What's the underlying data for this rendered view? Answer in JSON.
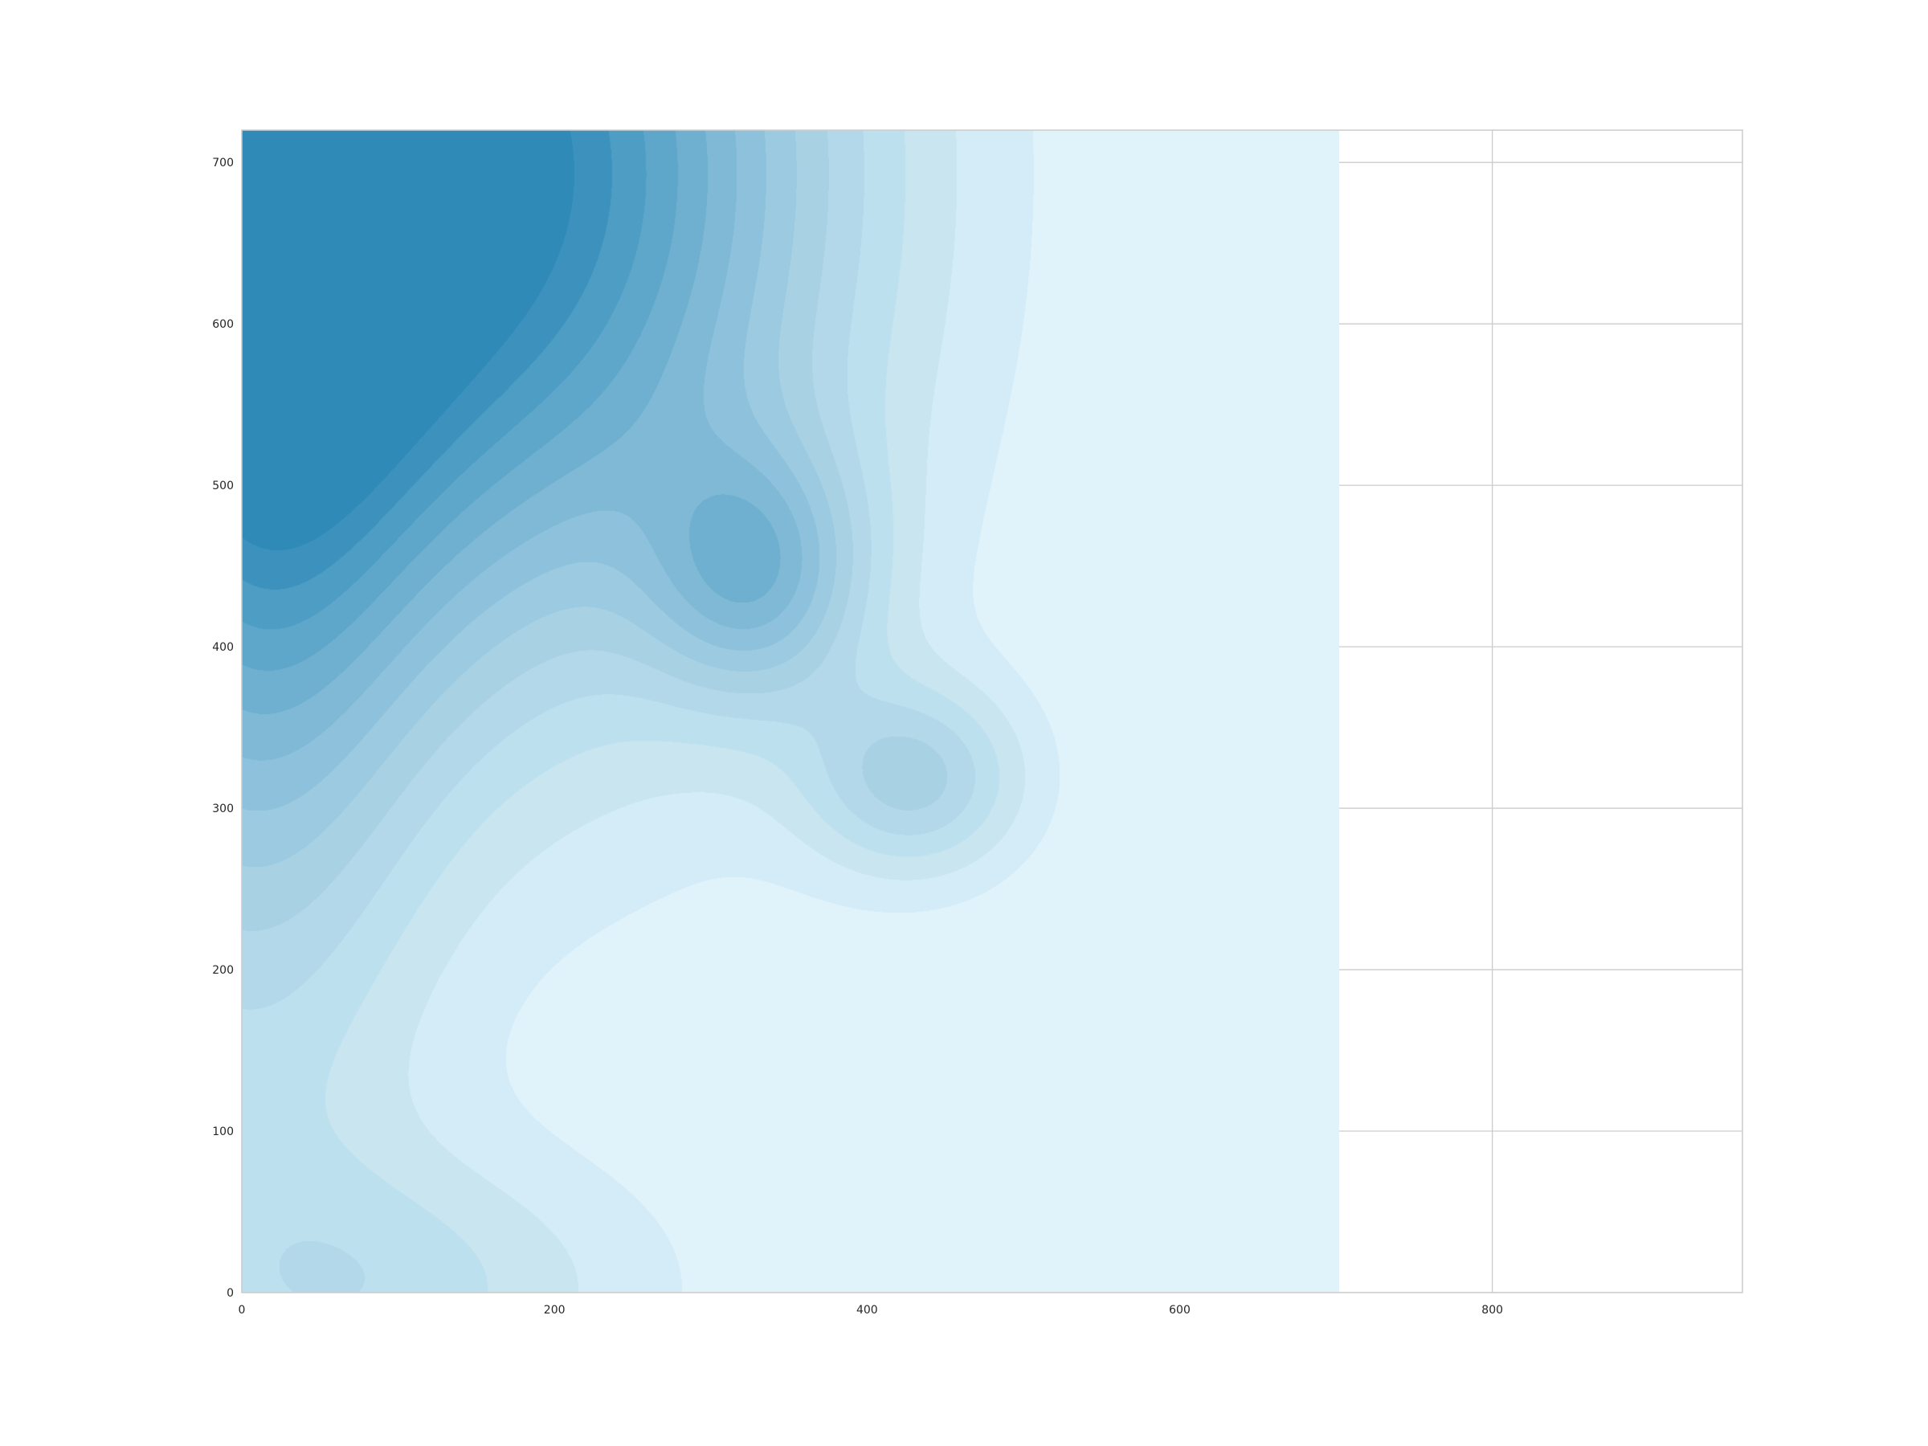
{
  "chart_data": {
    "type": "contour",
    "title": "",
    "xlabel": "",
    "ylabel": "",
    "xlim": [
      0,
      960
    ],
    "ylim": [
      0,
      720
    ],
    "grid": true,
    "x_ticks": [
      {
        "value": 0,
        "label": "0"
      },
      {
        "value": 200,
        "label": "200"
      },
      {
        "value": 400,
        "label": "400"
      },
      {
        "value": 600,
        "label": "600"
      },
      {
        "value": 800,
        "label": "800"
      }
    ],
    "y_ticks": [
      {
        "value": 0,
        "label": "0"
      },
      {
        "value": 100,
        "label": "100"
      },
      {
        "value": 200,
        "label": "200"
      },
      {
        "value": 300,
        "label": "300"
      },
      {
        "value": 400,
        "label": "400"
      },
      {
        "value": 500,
        "label": "500"
      },
      {
        "value": 600,
        "label": "600"
      },
      {
        "value": 700,
        "label": "700"
      }
    ],
    "data_extent": {
      "x": [
        0,
        702
      ],
      "y": [
        0,
        720
      ]
    },
    "colormap": [
      "#e0f3fb",
      "#d4ecf7",
      "#c8e5f0",
      "#bde0ef",
      "#b3d8e9",
      "#a8d1e4",
      "#9ccae0",
      "#8ec2dc",
      "#80b9d6",
      "#6fb0d0",
      "#5ea6ca",
      "#4d9dc4",
      "#3c92bd",
      "#2f8ab8"
    ],
    "peaks": [
      {
        "x": 170,
        "y": 693,
        "level": 13,
        "rx": 210,
        "ry": 290
      },
      {
        "x": 0,
        "y": 720,
        "level": 12,
        "rx": 120,
        "ry": 500
      },
      {
        "x": 330,
        "y": 445,
        "level": 6,
        "rx": 70,
        "ry": 80
      },
      {
        "x": 430,
        "y": 318,
        "level": 5,
        "rx": 70,
        "ry": 60
      },
      {
        "x": 100,
        "y": 0,
        "level": 3,
        "rx": 170,
        "ry": 90
      }
    ]
  }
}
